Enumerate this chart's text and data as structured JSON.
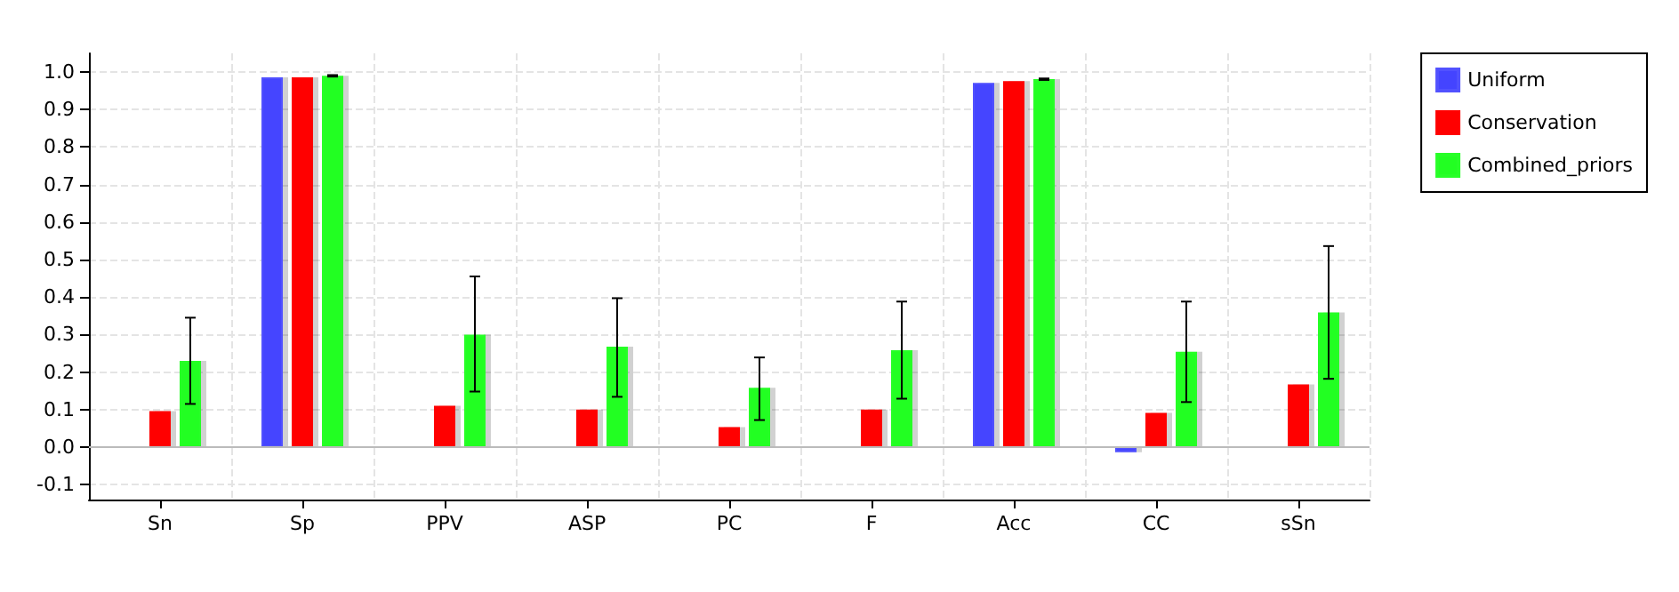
{
  "chart_data": {
    "type": "bar",
    "categories": [
      "Sn",
      "Sp",
      "PPV",
      "ASP",
      "PC",
      "F",
      "Acc",
      "CC",
      "sSn"
    ],
    "series": [
      {
        "name": "Uniform",
        "color": "#4444ff",
        "values": [
          null,
          0.986,
          null,
          null,
          null,
          null,
          0.971,
          -0.014,
          null
        ]
      },
      {
        "name": "Conservation",
        "color": "#ff0000",
        "values": [
          0.096,
          0.986,
          0.11,
          0.1,
          0.053,
          0.1,
          0.976,
          0.091,
          0.167
        ]
      },
      {
        "name": "Combined_priors",
        "color": "#22ff22",
        "values": [
          0.23,
          0.99,
          0.3,
          0.268,
          0.158,
          0.258,
          0.981,
          0.254,
          0.359
        ],
        "errors": [
          [
            0.115,
            0.345
          ],
          [
            0.988,
            0.992
          ],
          [
            0.148,
            0.455
          ],
          [
            0.134,
            0.397
          ],
          [
            0.072,
            0.239
          ],
          [
            0.129,
            0.388
          ],
          [
            0.979,
            0.983
          ],
          [
            0.12,
            0.388
          ],
          [
            0.182,
            0.536
          ]
        ]
      }
    ],
    "ylim": [
      -0.14,
      1.05
    ],
    "yticks": [
      -0.1,
      {
        "value": 0,
        "label": "0.0"
      },
      0.1,
      0.2,
      0.3,
      0.4,
      0.5,
      0.6,
      0.7,
      0.8,
      0.9,
      {
        "value": 1,
        "label": "1.0"
      }
    ],
    "ref_lines": [
      {
        "axis": "y",
        "value": 0,
        "color": "#bbbbbb"
      }
    ],
    "grid": true,
    "legend": "top right"
  }
}
